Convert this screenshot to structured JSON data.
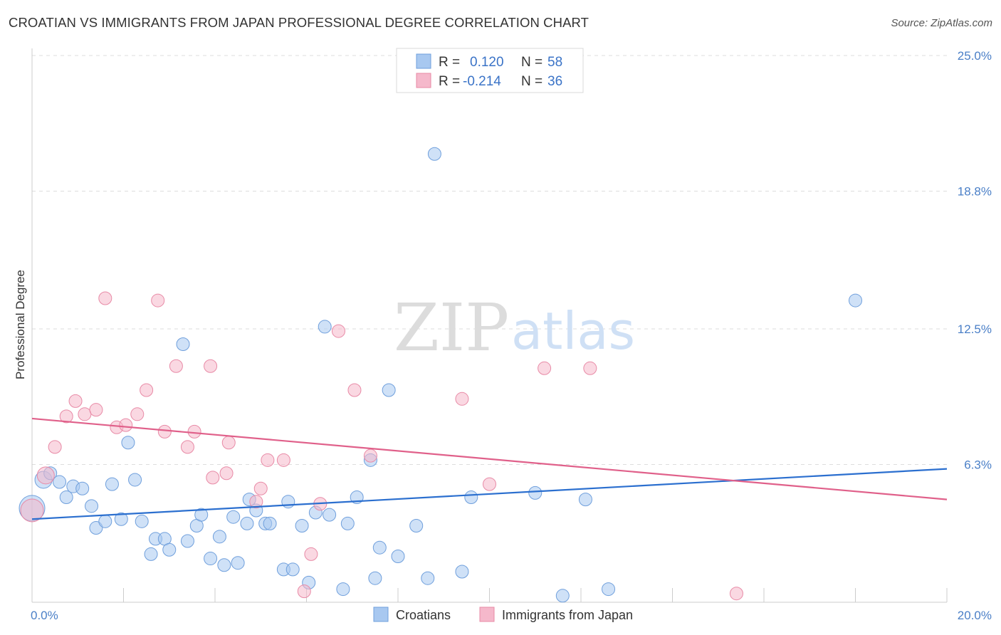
{
  "header": {
    "title": "CROATIAN VS IMMIGRANTS FROM JAPAN PROFESSIONAL DEGREE CORRELATION CHART",
    "source": "Source: ZipAtlas.com"
  },
  "watermark": {
    "zip": "ZIP",
    "atlas": "atlas"
  },
  "legend": {
    "rows": [
      {
        "r_label": "R =",
        "r_value": "0.120",
        "n_label": "N =",
        "n_value": "58",
        "color": "#a8c8f0"
      },
      {
        "r_label": "R =",
        "r_value": "-0.214",
        "n_label": "N =",
        "n_value": "36",
        "color": "#f5b8cb"
      }
    ]
  },
  "bottom_legend": {
    "items": [
      {
        "label": "Croatians",
        "color": "#a8c8f0"
      },
      {
        "label": "Immigrants from Japan",
        "color": "#f5b8cb"
      }
    ]
  },
  "chart_data": {
    "type": "scatter",
    "title": "CROATIAN VS IMMIGRANTS FROM JAPAN PROFESSIONAL DEGREE CORRELATION CHART",
    "xlabel": "",
    "ylabel": "Professional Degree",
    "xlim": [
      0,
      20
    ],
    "ylim": [
      0,
      25
    ],
    "x_tick_labels": [
      "0.0%",
      "20.0%"
    ],
    "y_ticks": [
      6.3,
      12.5,
      18.8,
      25.0
    ],
    "y_tick_labels": [
      "6.3%",
      "12.5%",
      "18.8%",
      "25.0%"
    ],
    "grid": "horizontal dashed",
    "legend_position": "top-center",
    "series": [
      {
        "name": "Croatians",
        "color": "#a8c8f0",
        "stroke": "#6f9fdc",
        "trend_color": "#2b6fcf",
        "trend": [
          [
            0,
            3.8
          ],
          [
            20,
            6.1
          ]
        ],
        "points": [
          [
            0.0,
            4.3,
            18
          ],
          [
            0.25,
            5.6,
            12
          ],
          [
            0.4,
            5.9,
            9
          ],
          [
            0.6,
            5.5,
            9
          ],
          [
            0.75,
            4.8,
            9
          ],
          [
            0.9,
            5.3,
            9
          ],
          [
            1.1,
            5.2,
            9
          ],
          [
            1.3,
            4.4,
            9
          ],
          [
            1.4,
            3.4,
            9
          ],
          [
            1.6,
            3.7,
            9
          ],
          [
            1.75,
            5.4,
            9
          ],
          [
            1.95,
            3.8,
            9
          ],
          [
            2.1,
            7.3,
            9
          ],
          [
            2.25,
            5.6,
            9
          ],
          [
            2.4,
            3.7,
            9
          ],
          [
            2.6,
            2.2,
            9
          ],
          [
            2.7,
            2.9,
            9
          ],
          [
            2.9,
            2.9,
            9
          ],
          [
            3.0,
            2.4,
            9
          ],
          [
            3.3,
            11.8,
            9
          ],
          [
            3.4,
            2.8,
            9
          ],
          [
            3.6,
            3.5,
            9
          ],
          [
            3.7,
            4.0,
            9
          ],
          [
            3.9,
            2.0,
            9
          ],
          [
            4.1,
            3.0,
            9
          ],
          [
            4.2,
            1.7,
            9
          ],
          [
            4.4,
            3.9,
            9
          ],
          [
            4.5,
            1.8,
            9
          ],
          [
            4.7,
            3.6,
            9
          ],
          [
            4.75,
            4.7,
            9
          ],
          [
            4.9,
            4.2,
            9
          ],
          [
            5.1,
            3.6,
            9
          ],
          [
            5.2,
            3.6,
            9
          ],
          [
            5.5,
            1.5,
            9
          ],
          [
            5.6,
            4.6,
            9
          ],
          [
            5.7,
            1.5,
            9
          ],
          [
            5.9,
            3.5,
            9
          ],
          [
            6.05,
            0.9,
            9
          ],
          [
            6.2,
            4.1,
            9
          ],
          [
            6.4,
            12.6,
            9
          ],
          [
            6.5,
            4.0,
            9
          ],
          [
            6.8,
            0.6,
            9
          ],
          [
            6.9,
            3.6,
            9
          ],
          [
            7.1,
            4.8,
            9
          ],
          [
            7.4,
            6.5,
            9
          ],
          [
            7.5,
            1.1,
            9
          ],
          [
            7.6,
            2.5,
            9
          ],
          [
            7.8,
            9.7,
            9
          ],
          [
            8.0,
            2.1,
            9
          ],
          [
            8.4,
            3.5,
            9
          ],
          [
            8.65,
            1.1,
            9
          ],
          [
            8.8,
            20.5,
            9
          ],
          [
            9.4,
            1.4,
            9
          ],
          [
            9.6,
            4.8,
            9
          ],
          [
            11.0,
            5.0,
            9
          ],
          [
            11.6,
            0.3,
            9
          ],
          [
            12.1,
            4.7,
            9
          ],
          [
            12.6,
            0.6,
            9
          ],
          [
            18.0,
            13.8,
            9
          ]
        ]
      },
      {
        "name": "Immigrants from Japan",
        "color": "#f5b8cb",
        "stroke": "#e88aa6",
        "trend_color": "#e0608a",
        "trend": [
          [
            0,
            8.4
          ],
          [
            20,
            4.7
          ]
        ],
        "points": [
          [
            0.0,
            4.2,
            16
          ],
          [
            0.3,
            5.8,
            12
          ],
          [
            0.5,
            7.1,
            9
          ],
          [
            0.75,
            8.5,
            9
          ],
          [
            0.95,
            9.2,
            9
          ],
          [
            1.15,
            8.6,
            9
          ],
          [
            1.4,
            8.8,
            9
          ],
          [
            1.6,
            13.9,
            9
          ],
          [
            1.85,
            8.0,
            9
          ],
          [
            2.05,
            8.1,
            9
          ],
          [
            2.3,
            8.6,
            9
          ],
          [
            2.5,
            9.7,
            9
          ],
          [
            2.75,
            13.8,
            9
          ],
          [
            2.9,
            7.8,
            9
          ],
          [
            3.15,
            10.8,
            9
          ],
          [
            3.4,
            7.1,
            9
          ],
          [
            3.55,
            7.8,
            9
          ],
          [
            3.9,
            10.8,
            9
          ],
          [
            3.95,
            5.7,
            9
          ],
          [
            4.25,
            5.9,
            9
          ],
          [
            4.3,
            7.3,
            9
          ],
          [
            4.9,
            4.6,
            9
          ],
          [
            5.0,
            5.2,
            9
          ],
          [
            5.15,
            6.5,
            9
          ],
          [
            5.5,
            6.5,
            9
          ],
          [
            5.95,
            0.5,
            9
          ],
          [
            6.1,
            2.2,
            9
          ],
          [
            6.3,
            4.5,
            9
          ],
          [
            6.7,
            12.4,
            9
          ],
          [
            7.05,
            9.7,
            9
          ],
          [
            7.4,
            6.7,
            9
          ],
          [
            9.4,
            9.3,
            9
          ],
          [
            10.0,
            5.4,
            9
          ],
          [
            11.2,
            10.7,
            9
          ],
          [
            12.2,
            10.7,
            9
          ],
          [
            15.4,
            0.4,
            9
          ]
        ]
      }
    ]
  }
}
